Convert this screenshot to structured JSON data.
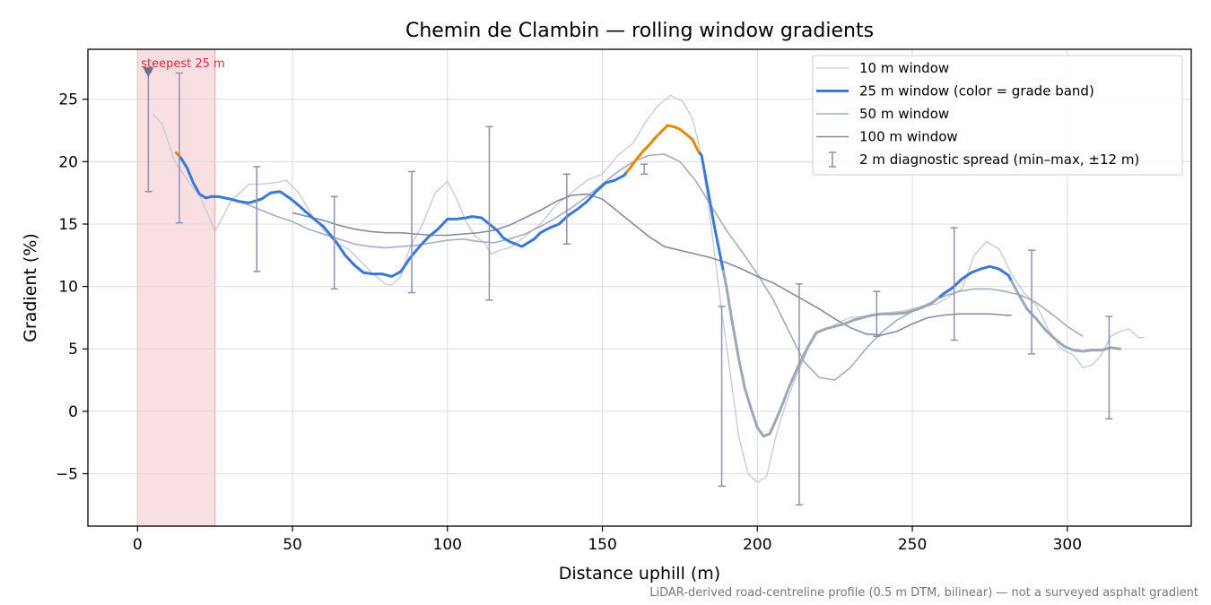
{
  "chart_data": {
    "type": "line",
    "title": "Chemin de Clambin — rolling window gradients",
    "xlabel": "Distance uphill (m)",
    "ylabel": "Gradient (%)",
    "xlim": [
      -16,
      340
    ],
    "ylim": [
      -9.2,
      29.0
    ],
    "xticks": [
      0,
      50,
      100,
      150,
      200,
      250,
      300
    ],
    "yticks": [
      -5,
      0,
      5,
      10,
      15,
      20,
      25
    ],
    "grid": true,
    "legend_position": "top-right",
    "footnote": "LiDAR-derived road-centreline profile (0.5 m DTM, bilinear) — not a surveyed asphalt gradient",
    "highlight": {
      "x_range": [
        0,
        25
      ],
      "label": "steepest 25 m",
      "marker_x": 3.5,
      "marker_y": 27.2,
      "color": "#d62839"
    },
    "grade_band_colors": {
      "normal": "#3a78d8",
      "steep": "#e08a00",
      "descent": "#9aa8b8"
    },
    "series": [
      {
        "name": "10 m window",
        "color": "#c4c9d6",
        "width": 1.3,
        "x": [
          5,
          8,
          10,
          12,
          14,
          17,
          20,
          22,
          25,
          28,
          30,
          33,
          36,
          40,
          44,
          48,
          52,
          56,
          60,
          64,
          68,
          72,
          76,
          80,
          82,
          85,
          88,
          92,
          96,
          100,
          103,
          106,
          109,
          112,
          114,
          117,
          120,
          125,
          130,
          135,
          140,
          145,
          150,
          155,
          160,
          164,
          168,
          172,
          176,
          179,
          182,
          185,
          188,
          191,
          194,
          197,
          200,
          203,
          206,
          209,
          212,
          215,
          218,
          221,
          224,
          227,
          230,
          234,
          238,
          242,
          246,
          250,
          254,
          258,
          262,
          266,
          270,
          274,
          278,
          282,
          286,
          290,
          294,
          298,
          302,
          305,
          308,
          311,
          314,
          317,
          320,
          323,
          325
        ],
        "values": [
          23.8,
          23.0,
          21.5,
          20.0,
          19.3,
          18.2,
          17.3,
          16.2,
          14.4,
          15.8,
          16.8,
          17.5,
          18.2,
          18.2,
          18.3,
          18.5,
          17.5,
          15.8,
          14.5,
          13.5,
          13.0,
          12.0,
          11.0,
          10.2,
          10.1,
          10.8,
          13.2,
          15.0,
          17.5,
          18.4,
          17.0,
          15.2,
          14.0,
          13.5,
          12.6,
          12.9,
          13.1,
          14.0,
          15.0,
          16.5,
          17.5,
          18.5,
          19.0,
          20.5,
          21.5,
          23.2,
          24.5,
          25.3,
          24.8,
          23.5,
          20.5,
          15.0,
          9.0,
          3.5,
          -2.0,
          -5.0,
          -5.7,
          -5.2,
          -2.0,
          0.5,
          2.5,
          4.2,
          6.0,
          6.5,
          6.8,
          7.2,
          7.5,
          7.6,
          7.8,
          7.9,
          8.0,
          8.2,
          8.5,
          8.6,
          9.2,
          9.8,
          12.5,
          13.6,
          13.0,
          11.0,
          9.5,
          8.5,
          6.5,
          5.0,
          4.5,
          3.5,
          3.7,
          4.5,
          6.0,
          6.4,
          6.6,
          5.9,
          5.9
        ]
      },
      {
        "name": "25 m window (color = grade band)",
        "color": "#3a78d8",
        "width": 3.0,
        "x": [
          12.5,
          14,
          16,
          18,
          20,
          22,
          24,
          26,
          28,
          30,
          33,
          36,
          40,
          43,
          46,
          49,
          52,
          56,
          60,
          64,
          67,
          70,
          73,
          76,
          79,
          82,
          85,
          88,
          91,
          94,
          97,
          100,
          103,
          106,
          108,
          111,
          114,
          116,
          118,
          120,
          122,
          124,
          126,
          128,
          130,
          133,
          136,
          139,
          142,
          145,
          148,
          151,
          154,
          157,
          159,
          161,
          163,
          165,
          167,
          169,
          171,
          173,
          175,
          177,
          179,
          181,
          182,
          184,
          186,
          188,
          190,
          192,
          194,
          196,
          198,
          200,
          202,
          204,
          206,
          208,
          210,
          213,
          216,
          219,
          222,
          225,
          228,
          231,
          234,
          237,
          240,
          244,
          248,
          252,
          256,
          260,
          263,
          266,
          269,
          272,
          275,
          278,
          281,
          284,
          287,
          290,
          293,
          296,
          299,
          302,
          305,
          308,
          311,
          314,
          317
        ],
        "values": [
          20.7,
          20.3,
          19.5,
          18.3,
          17.4,
          17.1,
          17.2,
          17.2,
          17.1,
          17.0,
          16.8,
          16.7,
          17.0,
          17.5,
          17.6,
          17.1,
          16.5,
          15.6,
          14.8,
          13.6,
          12.5,
          11.7,
          11.1,
          11.0,
          11.0,
          10.8,
          11.2,
          12.3,
          13.2,
          14.0,
          14.6,
          15.4,
          15.4,
          15.5,
          15.6,
          15.5,
          14.9,
          14.5,
          13.9,
          13.6,
          13.4,
          13.2,
          13.5,
          13.8,
          14.3,
          14.7,
          15.0,
          15.7,
          16.2,
          16.8,
          17.6,
          18.3,
          18.5,
          18.9,
          19.5,
          20.2,
          20.8,
          21.3,
          21.9,
          22.4,
          22.9,
          22.8,
          22.6,
          22.2,
          21.8,
          20.8,
          20.5,
          17.8,
          15.0,
          12.5,
          10.0,
          7.0,
          4.2,
          1.8,
          0.2,
          -1.3,
          -2.0,
          -1.8,
          -0.7,
          0.5,
          1.8,
          3.5,
          5.0,
          6.3,
          6.6,
          6.8,
          7.0,
          7.3,
          7.5,
          7.7,
          7.8,
          7.8,
          7.9,
          8.2,
          8.6,
          9.4,
          9.9,
          10.6,
          11.1,
          11.4,
          11.6,
          11.4,
          10.9,
          9.5,
          8.2,
          7.4,
          6.5,
          5.8,
          5.2,
          4.9,
          4.8,
          4.9,
          4.9,
          5.1,
          5.0
        ],
        "bands": [
          {
            "band": "steep",
            "from": 12.5,
            "to": 14
          },
          {
            "band": "normal",
            "from": 14,
            "to": 158
          },
          {
            "band": "steep",
            "from": 158,
            "to": 181.5
          },
          {
            "band": "normal",
            "from": 181.5,
            "to": 189
          },
          {
            "band": "descent",
            "from": 189,
            "to": 259
          },
          {
            "band": "normal",
            "from": 259,
            "to": 282
          },
          {
            "band": "descent",
            "from": 282,
            "to": 317
          }
        ]
      },
      {
        "name": "50 m window",
        "color": "#a3adbf",
        "width": 1.6,
        "x": [
          25,
          30,
          35,
          40,
          45,
          50,
          55,
          60,
          65,
          70,
          75,
          80,
          85,
          90,
          95,
          100,
          105,
          110,
          115,
          120,
          125,
          130,
          135,
          140,
          145,
          150,
          155,
          160,
          165,
          170,
          175,
          180,
          185,
          190,
          195,
          200,
          205,
          210,
          215,
          220,
          225,
          230,
          235,
          240,
          245,
          250,
          255,
          260,
          265,
          270,
          275,
          280,
          285,
          290,
          295,
          300,
          305
        ],
        "values": [
          17.2,
          17.0,
          16.6,
          16.1,
          15.6,
          15.2,
          14.6,
          14.2,
          13.8,
          13.4,
          13.2,
          13.1,
          13.2,
          13.3,
          13.5,
          13.7,
          13.8,
          13.6,
          13.5,
          13.8,
          14.2,
          14.8,
          15.5,
          16.3,
          17.2,
          18.2,
          19.2,
          20.0,
          20.5,
          20.6,
          20.0,
          18.5,
          16.5,
          14.5,
          12.8,
          11.0,
          9.0,
          6.5,
          4.0,
          2.7,
          2.5,
          3.5,
          5.0,
          6.3,
          7.3,
          8.0,
          8.6,
          9.2,
          9.6,
          9.8,
          9.8,
          9.6,
          9.3,
          8.7,
          7.8,
          6.8,
          6.0
        ]
      },
      {
        "name": "100 m window",
        "color": "#848c9e",
        "width": 1.6,
        "x": [
          50,
          55,
          60,
          65,
          70,
          75,
          80,
          85,
          90,
          95,
          100,
          105,
          110,
          115,
          120,
          125,
          130,
          135,
          140,
          145,
          150,
          155,
          160,
          165,
          170,
          175,
          180,
          185,
          190,
          195,
          200,
          205,
          210,
          215,
          220,
          225,
          230,
          235,
          240,
          245,
          250,
          255,
          260,
          265,
          270,
          275,
          280,
          282
        ],
        "values": [
          15.9,
          15.6,
          15.3,
          14.9,
          14.6,
          14.4,
          14.3,
          14.3,
          14.2,
          14.1,
          14.1,
          14.2,
          14.3,
          14.5,
          14.9,
          15.5,
          16.1,
          16.8,
          17.3,
          17.4,
          17.0,
          16.0,
          15.0,
          14.0,
          13.2,
          12.9,
          12.6,
          12.3,
          11.9,
          11.4,
          10.8,
          10.3,
          9.6,
          8.9,
          8.2,
          7.4,
          6.7,
          6.2,
          6.1,
          6.4,
          7.0,
          7.5,
          7.7,
          7.8,
          7.8,
          7.8,
          7.7,
          7.7
        ]
      },
      {
        "name": "2 m diagnostic spread (min–max, ±12 m)",
        "type": "errorbar",
        "color": "#8f8fb3",
        "points": [
          {
            "x": 3.5,
            "min": 17.6,
            "max": 27.2
          },
          {
            "x": 13.5,
            "min": 15.1,
            "max": 27.1
          },
          {
            "x": 38.5,
            "min": 11.2,
            "max": 19.6
          },
          {
            "x": 63.5,
            "min": 9.8,
            "max": 17.2
          },
          {
            "x": 88.5,
            "min": 9.5,
            "max": 19.2
          },
          {
            "x": 113.5,
            "min": 8.9,
            "max": 22.8
          },
          {
            "x": 138.5,
            "min": 13.4,
            "max": 19.0
          },
          {
            "x": 163.5,
            "min": 19.0,
            "max": 19.8
          },
          {
            "x": 188.5,
            "min": -6.0,
            "max": 8.4
          },
          {
            "x": 213.5,
            "min": -7.5,
            "max": 10.2
          },
          {
            "x": 238.5,
            "min": 6.0,
            "max": 9.6
          },
          {
            "x": 263.5,
            "min": 5.7,
            "max": 14.7
          },
          {
            "x": 288.5,
            "min": 4.6,
            "max": 12.9
          },
          {
            "x": 313.5,
            "min": -0.6,
            "max": 7.6
          }
        ]
      }
    ]
  }
}
